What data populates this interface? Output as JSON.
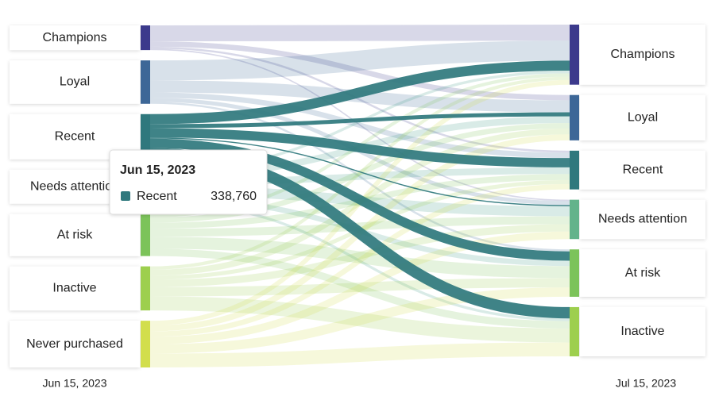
{
  "chart_data": {
    "type": "sankey",
    "left_label": "Jun 15, 2023",
    "right_label": "Jul 15, 2023",
    "left_nodes": [
      {
        "name": "Champions",
        "color": "#3c3a8c"
      },
      {
        "name": "Loyal",
        "color": "#3d6797"
      },
      {
        "name": "Recent",
        "color": "#2f787d"
      },
      {
        "name": "Needs attention",
        "color": "#3f9a89"
      },
      {
        "name": "At risk",
        "color": "#7cc35a"
      },
      {
        "name": "Inactive",
        "color": "#9dcf4e"
      },
      {
        "name": "Never purchased",
        "color": "#d2de4c"
      }
    ],
    "right_nodes": [
      {
        "name": "Champions",
        "color": "#3c3a8c"
      },
      {
        "name": "Loyal",
        "color": "#3d6797"
      },
      {
        "name": "Recent",
        "color": "#2f787d"
      },
      {
        "name": "Needs attention",
        "color": "#63b38b"
      },
      {
        "name": "At risk",
        "color": "#7cc35a"
      },
      {
        "name": "Inactive",
        "color": "#9dcf4e"
      }
    ],
    "links": [
      {
        "source": 0,
        "target": 0,
        "value": 120000
      },
      {
        "source": 0,
        "target": 1,
        "value": 40000
      },
      {
        "source": 0,
        "target": 2,
        "value": 15000
      },
      {
        "source": 0,
        "target": 3,
        "value": 10000
      },
      {
        "source": 1,
        "target": 0,
        "value": 150000
      },
      {
        "source": 1,
        "target": 1,
        "value": 90000
      },
      {
        "source": 1,
        "target": 2,
        "value": 40000
      },
      {
        "source": 1,
        "target": 3,
        "value": 30000
      },
      {
        "source": 1,
        "target": 4,
        "value": 15000
      },
      {
        "source": 2,
        "target": 0,
        "value": 75000
      },
      {
        "source": 2,
        "target": 1,
        "value": 30000
      },
      {
        "source": 2,
        "target": 2,
        "value": 70000
      },
      {
        "source": 2,
        "target": 3,
        "value": 8760
      },
      {
        "source": 2,
        "target": 4,
        "value": 70000
      },
      {
        "source": 2,
        "target": 5,
        "value": 85000
      },
      {
        "source": 3,
        "target": 0,
        "value": 20000
      },
      {
        "source": 3,
        "target": 1,
        "value": 50000
      },
      {
        "source": 3,
        "target": 2,
        "value": 50000
      },
      {
        "source": 3,
        "target": 3,
        "value": 75000
      },
      {
        "source": 3,
        "target": 4,
        "value": 40000
      },
      {
        "source": 3,
        "target": 5,
        "value": 20000
      },
      {
        "source": 4,
        "target": 0,
        "value": 25000
      },
      {
        "source": 4,
        "target": 1,
        "value": 40000
      },
      {
        "source": 4,
        "target": 2,
        "value": 45000
      },
      {
        "source": 4,
        "target": 3,
        "value": 60000
      },
      {
        "source": 4,
        "target": 4,
        "value": 90000
      },
      {
        "source": 4,
        "target": 5,
        "value": 55000
      },
      {
        "source": 5,
        "target": 0,
        "value": 25000
      },
      {
        "source": 5,
        "target": 1,
        "value": 45000
      },
      {
        "source": 5,
        "target": 2,
        "value": 30000
      },
      {
        "source": 5,
        "target": 3,
        "value": 55000
      },
      {
        "source": 5,
        "target": 4,
        "value": 70000
      },
      {
        "source": 5,
        "target": 5,
        "value": 105000
      },
      {
        "source": 6,
        "target": 0,
        "value": 35000
      },
      {
        "source": 6,
        "target": 1,
        "value": 45000
      },
      {
        "source": 6,
        "target": 2,
        "value": 40000
      },
      {
        "source": 6,
        "target": 3,
        "value": 56000
      },
      {
        "source": 6,
        "target": 4,
        "value": 70000
      },
      {
        "source": 6,
        "target": 5,
        "value": 104000
      }
    ],
    "tooltip": {
      "title": "Jun 15, 2023",
      "series": "Recent",
      "value": 338760,
      "value_label": "338,760"
    }
  }
}
